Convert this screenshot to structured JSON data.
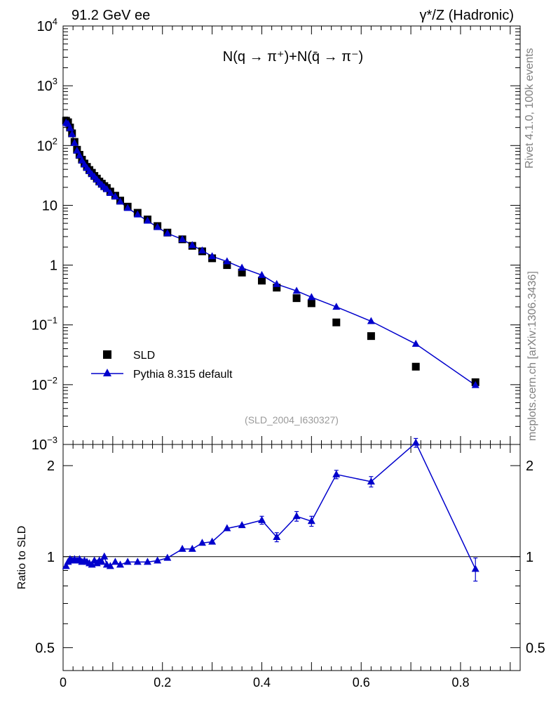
{
  "header": {
    "left": "91.2 GeV ee",
    "right": "γ*/Z (Hadronic)"
  },
  "side_labels": {
    "rivet": "Rivet 4.1.0,  100k events",
    "mcplots": "mcplots.cern.ch [arXiv:1306.3436]"
  },
  "chart_data": {
    "type": "scatter",
    "title": "N(q → π⁺)+N(q̄ → π⁻)",
    "analysis_tag": "(SLD_2004_I630327)",
    "main": {
      "yscale": "log",
      "ylim": [
        0.001,
        10000
      ],
      "ytick_labels": [
        {
          "v": 10000,
          "base": "10",
          "exp": "4"
        },
        {
          "v": 1000,
          "base": "10",
          "exp": "3"
        },
        {
          "v": 100,
          "base": "10",
          "exp": "2"
        },
        {
          "v": 10,
          "base": "10",
          "exp": ""
        },
        {
          "v": 1,
          "base": "1",
          "exp": ""
        },
        {
          "v": 0.1,
          "base": "10",
          "exp": "−1"
        },
        {
          "v": 0.01,
          "base": "10",
          "exp": "−2"
        },
        {
          "v": 0.001,
          "base": "10",
          "exp": "−3"
        }
      ]
    },
    "xlim": [
      0,
      0.92
    ],
    "xticks": [
      0,
      0.2,
      0.4,
      0.6,
      0.8
    ],
    "xtick_labels": [
      "0",
      "0.2",
      "0.4",
      "0.6",
      "0.8"
    ],
    "legend": {
      "placement": "lower-left",
      "entries": [
        "SLD",
        "Pythia 8.315 default"
      ]
    },
    "series": [
      {
        "name": "SLD",
        "marker": "square",
        "color": "#000000",
        "x": [
          0.006,
          0.01,
          0.014,
          0.018,
          0.023,
          0.028,
          0.033,
          0.038,
          0.043,
          0.048,
          0.053,
          0.058,
          0.063,
          0.068,
          0.073,
          0.078,
          0.083,
          0.088,
          0.095,
          0.105,
          0.115,
          0.13,
          0.15,
          0.17,
          0.19,
          0.21,
          0.24,
          0.26,
          0.28,
          0.3,
          0.33,
          0.36,
          0.4,
          0.43,
          0.47,
          0.5,
          0.55,
          0.62,
          0.71,
          0.83
        ],
        "y": [
          260,
          245,
          200,
          160,
          115,
          85,
          70,
          58,
          50,
          44,
          39,
          35,
          31,
          28,
          25,
          23,
          21,
          19.5,
          17,
          14.5,
          12,
          9.5,
          7.5,
          5.8,
          4.5,
          3.5,
          2.7,
          2.1,
          1.7,
          1.3,
          1.0,
          0.75,
          0.55,
          0.42,
          0.28,
          0.23,
          0.11,
          0.065,
          0.02,
          0.011
        ]
      },
      {
        "name": "Pythia 8.315 default",
        "marker": "triangle",
        "color": "#0000cc",
        "x": [
          0.006,
          0.01,
          0.014,
          0.018,
          0.023,
          0.028,
          0.033,
          0.038,
          0.043,
          0.048,
          0.053,
          0.058,
          0.063,
          0.068,
          0.073,
          0.078,
          0.083,
          0.088,
          0.095,
          0.105,
          0.115,
          0.13,
          0.15,
          0.17,
          0.19,
          0.21,
          0.24,
          0.26,
          0.28,
          0.3,
          0.33,
          0.36,
          0.4,
          0.43,
          0.47,
          0.5,
          0.55,
          0.62,
          0.71,
          0.83
        ],
        "y": [
          240,
          230,
          195,
          155,
          110,
          82,
          68,
          56,
          48,
          42,
          37,
          33,
          30,
          27,
          24,
          22,
          20,
          18.5,
          16,
          14,
          11.5,
          9.0,
          7.0,
          5.5,
          4.3,
          3.4,
          2.7,
          2.15,
          1.75,
          1.4,
          1.15,
          0.9,
          0.68,
          0.48,
          0.37,
          0.29,
          0.2,
          0.115,
          0.048,
          0.0098
        ]
      }
    ],
    "ratio": {
      "ylabel": "Ratio to SLD",
      "yscale": "log",
      "ylim": [
        0.42,
        2.35
      ],
      "yticks": [
        0.5,
        1,
        2
      ],
      "ytick_labels": [
        "0.5",
        "1",
        "2"
      ],
      "reference_line": 1,
      "x": [
        0.006,
        0.01,
        0.014,
        0.018,
        0.023,
        0.028,
        0.033,
        0.038,
        0.043,
        0.048,
        0.053,
        0.058,
        0.063,
        0.068,
        0.073,
        0.078,
        0.083,
        0.088,
        0.095,
        0.105,
        0.115,
        0.13,
        0.15,
        0.17,
        0.19,
        0.21,
        0.24,
        0.26,
        0.28,
        0.3,
        0.33,
        0.36,
        0.4,
        0.43,
        0.47,
        0.5,
        0.55,
        0.62,
        0.71,
        0.83
      ],
      "values": [
        0.93,
        0.96,
        0.98,
        0.97,
        0.98,
        0.97,
        0.98,
        0.96,
        0.97,
        0.96,
        0.95,
        0.94,
        0.97,
        0.95,
        0.97,
        0.96,
        1.0,
        0.94,
        0.93,
        0.96,
        0.94,
        0.96,
        0.96,
        0.96,
        0.97,
        0.99,
        1.06,
        1.06,
        1.11,
        1.12,
        1.24,
        1.27,
        1.32,
        1.16,
        1.36,
        1.31,
        1.87,
        1.77,
        2.38,
        0.91
      ],
      "errors": [
        0.015,
        0.015,
        0.015,
        0.015,
        0.015,
        0.015,
        0.015,
        0.015,
        0.015,
        0.015,
        0.015,
        0.015,
        0.015,
        0.015,
        0.015,
        0.015,
        0.015,
        0.015,
        0.015,
        0.015,
        0.015,
        0.015,
        0.015,
        0.015,
        0.015,
        0.015,
        0.02,
        0.02,
        0.02,
        0.02,
        0.02,
        0.02,
        0.04,
        0.04,
        0.05,
        0.05,
        0.06,
        0.07,
        0.08,
        0.08
      ]
    }
  }
}
